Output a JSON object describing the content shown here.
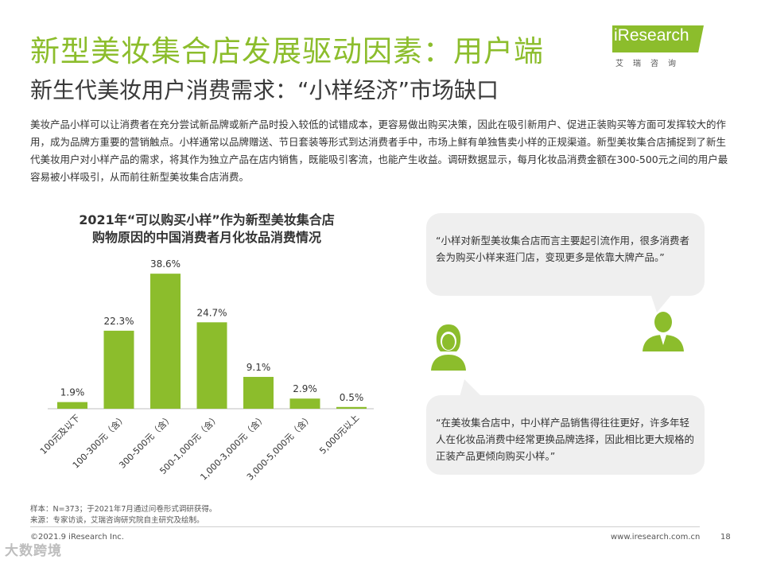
{
  "header": {
    "title": "新型美妆集合店发展驱动因素：用户端",
    "subtitle": "新生代美妆用户消费需求：“小样经济”市场缺口"
  },
  "logo": {
    "text": "iResearch",
    "sub": "艾瑞咨询"
  },
  "body_text": "美妆产品小样可以让消费者在充分尝试新品牌或新产品时投入较低的试错成本，更容易做出购买决策，因此在吸引新用户、促进正装购买等方面可发挥较大的作用，成为品牌方重要的营销触点。小样通常以品牌赠送、节日套装等形式到达消费者手中，市场上鲜有单独售卖小样的正规渠道。新型美妆集合店捕捉到了新生代美妆用户对小样产品的需求，将其作为独立产品在店内销售，既能吸引客流，也能产生收益。调研数据显示，每月化妆品消费金额在300-500元之间的用户最容易被小样吸引，从而前往新型美妆集合店消费。",
  "chart_data": {
    "type": "bar",
    "title_lines": [
      "2021年“可以购买小样”作为新型美妆集合店",
      "购物原因的中国消费者月化妆品消费情况"
    ],
    "categories": [
      "100元及以下",
      "100-300元（含）",
      "300-500元（含）",
      "500-1,000元（含）",
      "1,000-3,000元（含）",
      "3,000-5,000元（含）",
      "5,000元以上"
    ],
    "values": [
      1.9,
      22.3,
      38.6,
      24.7,
      9.1,
      2.9,
      0.5
    ],
    "value_labels": [
      "1.9%",
      "22.3%",
      "38.6%",
      "24.7%",
      "9.1%",
      "2.9%",
      "0.5%"
    ],
    "unit": "%",
    "ylim": [
      0,
      40
    ],
    "color": "#8cbd2c"
  },
  "quotes": [
    "“小样对新型美妆集合店而言主要起引流作用，很多消费者会为购买小样来逛门店，变现更多是依靠大牌产品。”",
    "“在美妆集合店中，中小样产品销售得往往更好，许多年轻人在化妆品消费中经常更换品牌选择，因此相比更大规格的正装产品更倾向购买小样。”"
  ],
  "notes": {
    "sample": "样本：N=373；于2021年7月通过问卷形式调研获得。",
    "source": "来源：专家访谈，艾瑞咨询研究院自主研究及绘制。"
  },
  "footer": {
    "copyright": "©2021.9 iResearch Inc.",
    "website": "www.iresearch.com.cn",
    "page": "18"
  },
  "watermark": "大数跨境",
  "colors": {
    "accent": "#8cbd2c",
    "bubble": "#efefef"
  }
}
